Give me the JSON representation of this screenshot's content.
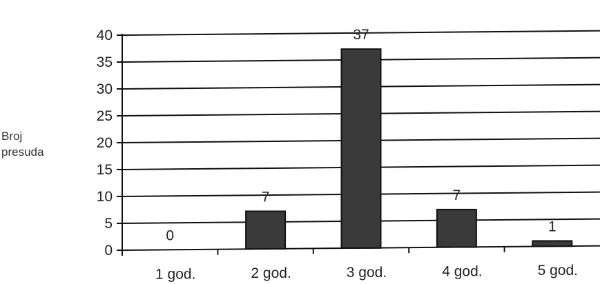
{
  "chart_data": {
    "type": "bar",
    "title": "",
    "xlabel": "",
    "ylabel": "Broj presuda",
    "ylabel_lines": [
      "Broj",
      "presuda"
    ],
    "categories": [
      "1 god.",
      "2 god.",
      "3 god.",
      "4 god.",
      "5 god."
    ],
    "values": [
      0,
      7,
      37,
      7,
      1
    ],
    "data_labels": [
      "0",
      "7",
      "37",
      "7",
      "1"
    ],
    "ylim": [
      0,
      40
    ],
    "yticks": [
      0,
      5,
      10,
      15,
      20,
      25,
      30,
      35,
      40
    ],
    "grid": true,
    "legend": "none",
    "bar_color": "#3a3a3a",
    "grid_color": "#111111"
  }
}
